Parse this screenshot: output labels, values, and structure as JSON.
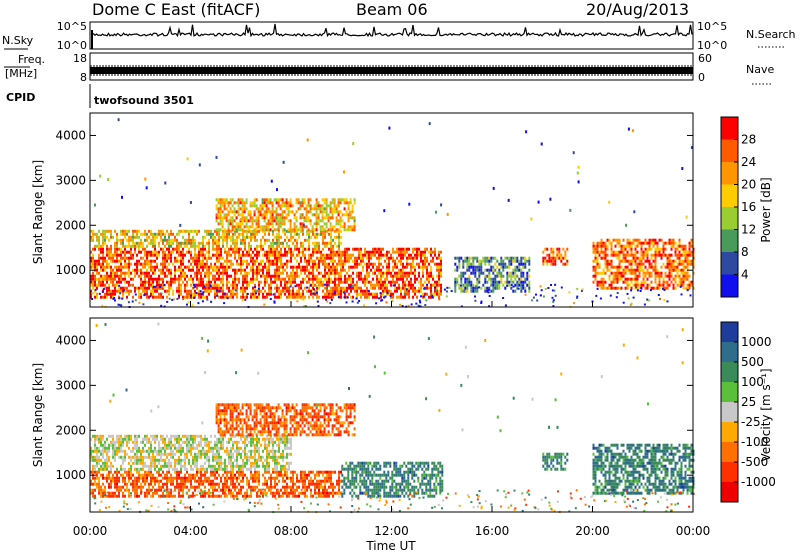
{
  "header": {
    "title": "Dome C East (fitACF)",
    "beam": "Beam 06",
    "date": "20/Aug/2013"
  },
  "strips": {
    "nsky_label": "N.Sky",
    "nsky_ticks": [
      "10^5",
      "10^0"
    ],
    "nsearch_label": "N.Search",
    "freq_label_1": "Freq.",
    "freq_label_2": "[MHz]",
    "freq_ticks": [
      "18",
      "8"
    ],
    "nave_label": "Nave",
    "nave_ticks": [
      "60",
      "0"
    ],
    "cpid_label": "CPID",
    "cpid_value": "twofsound 3501"
  },
  "chart_data": [
    {
      "type": "heatmap",
      "quantity": "Power",
      "ylabel": "Slant Range [km]",
      "colorbar_label": "Power [dB]",
      "xlim_hours": [
        0,
        24
      ],
      "ylim_km": [
        180,
        4500
      ],
      "y_ticks": [
        1000,
        2000,
        3000,
        4000
      ],
      "colorbar_ticks": [
        "28",
        "24",
        "20",
        "16",
        "12",
        "8",
        "4"
      ],
      "colorbar_colors": [
        "#ff0000",
        "#ff5a00",
        "#ff9600",
        "#ffcc00",
        "#9acd32",
        "#4a9a5a",
        "#2e4aa0",
        "#1010ee"
      ],
      "echo_regions": [
        {
          "t0": 0.0,
          "t1": 14.0,
          "r0": 400,
          "r1": 1500,
          "level": 0.85
        },
        {
          "t0": 0.0,
          "t1": 10.0,
          "r0": 1500,
          "r1": 1900,
          "level": 0.6
        },
        {
          "t0": 5.0,
          "t1": 10.5,
          "r0": 1900,
          "r1": 2600,
          "level": 0.65
        },
        {
          "t0": 14.5,
          "t1": 17.5,
          "r0": 500,
          "r1": 1300,
          "level": 0.25
        },
        {
          "t0": 18.0,
          "t1": 19.0,
          "r0": 1100,
          "r1": 1500,
          "level": 0.85
        },
        {
          "t0": 20.0,
          "t1": 24.0,
          "r0": 600,
          "r1": 1700,
          "level": 0.8
        }
      ]
    },
    {
      "type": "heatmap",
      "quantity": "Velocity",
      "ylabel": "Slant Range [km]",
      "xlabel": "Time UT",
      "colorbar_label": "Velocity [m s⁻¹]",
      "xlim_hours": [
        0,
        24
      ],
      "ylim_km": [
        180,
        4500
      ],
      "x_ticks": [
        "00:00",
        "04:00",
        "08:00",
        "12:00",
        "16:00",
        "20:00",
        "00:00"
      ],
      "y_ticks": [
        1000,
        2000,
        3000,
        4000
      ],
      "colorbar_ticks": [
        "1000",
        "500",
        "100",
        "25",
        "-25",
        "-100",
        "-500",
        "-1000"
      ],
      "colorbar_colors": [
        "#1e3c9a",
        "#2e6e8a",
        "#3a8a5a",
        "#5abf3a",
        "#c8c8c8",
        "#ffaa00",
        "#ff7000",
        "#ff3000",
        "#ee0000"
      ],
      "echo_regions": [
        {
          "t0": 0.0,
          "t1": 10.0,
          "r0": 500,
          "r1": 1100,
          "level": -0.6
        },
        {
          "t0": 0.0,
          "t1": 8.0,
          "r0": 1100,
          "r1": 1900,
          "level": 0.0
        },
        {
          "t0": 5.0,
          "t1": 10.5,
          "r0": 1900,
          "r1": 2600,
          "level": -0.6
        },
        {
          "t0": 10.0,
          "t1": 14.0,
          "r0": 500,
          "r1": 1300,
          "level": 0.6
        },
        {
          "t0": 18.0,
          "t1": 19.0,
          "r0": 1100,
          "r1": 1500,
          "level": 0.6
        },
        {
          "t0": 20.0,
          "t1": 24.0,
          "r0": 600,
          "r1": 1700,
          "level": 0.6
        }
      ]
    }
  ]
}
